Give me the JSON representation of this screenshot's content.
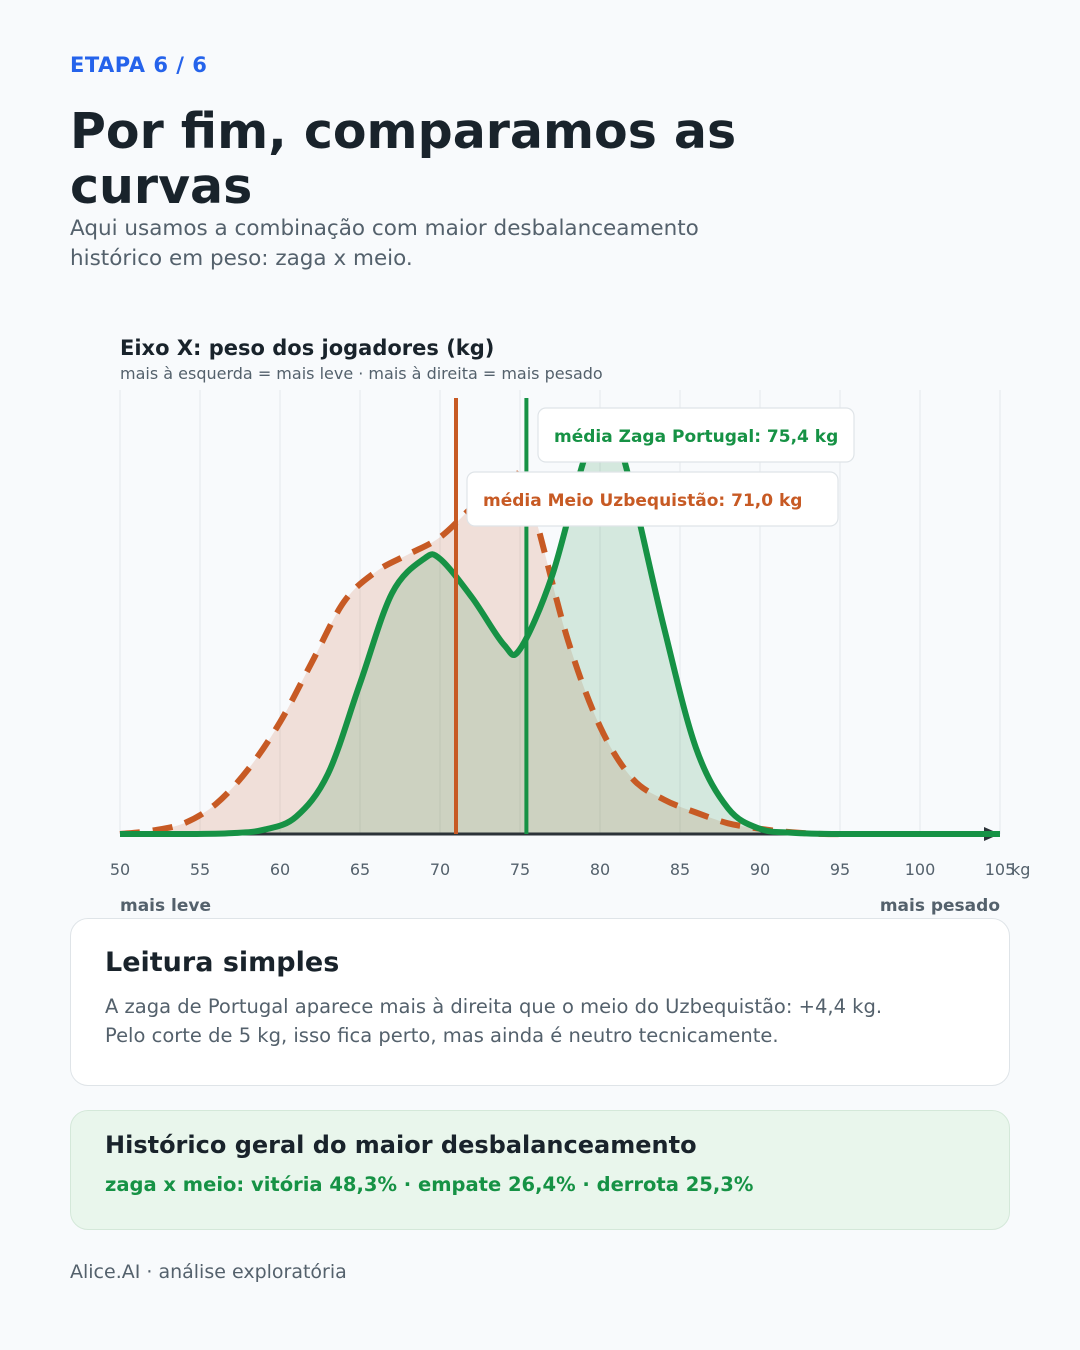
{
  "header": {
    "step": "ETAPA 6 / 6",
    "title": "Por fim, comparamos as curvas",
    "subtitle": "Aqui usamos a combinação com maior desbalanceamento histórico em peso: zaga x meio."
  },
  "chart_data": {
    "type": "area",
    "title": "Eixo X: peso dos jogadores (kg)",
    "subtitle": "mais à esquerda = mais leve · mais à direita = mais pesado",
    "xlabel": "kg",
    "x_left_label": "mais leve",
    "x_right_label": "mais pesado",
    "xlim": [
      50,
      105
    ],
    "ylim": [
      0,
      1
    ],
    "x_ticks": [
      50,
      55,
      60,
      65,
      70,
      75,
      80,
      85,
      90,
      95,
      100,
      105
    ],
    "x_tick_labels": [
      "50",
      "55",
      "60",
      "65",
      "70",
      "75",
      "80",
      "85",
      "90",
      "95",
      "100",
      "105"
    ],
    "grid": true,
    "y_axis_visible": false,
    "series": [
      {
        "name": "Meio Uzbequistão",
        "color": "#c75a24",
        "style": "dashed",
        "x": [
          50,
          52,
          54,
          56,
          58,
          60,
          62,
          64,
          66,
          68,
          70,
          72,
          74,
          75,
          76,
          78,
          80,
          82,
          84,
          86,
          88,
          90,
          92,
          94,
          96,
          100,
          105
        ],
        "y": [
          0.0,
          0.008,
          0.025,
          0.07,
          0.15,
          0.26,
          0.4,
          0.54,
          0.61,
          0.65,
          0.69,
          0.76,
          0.83,
          0.83,
          0.73,
          0.45,
          0.25,
          0.13,
          0.08,
          0.05,
          0.025,
          0.012,
          0.004,
          0.0,
          0.0,
          0.0,
          0.0
        ],
        "mean": 71.0,
        "mean_label": "média Meio Uzbequistão: 71,0 kg"
      },
      {
        "name": "Zaga Portugal",
        "color": "#169245",
        "style": "solid",
        "x": [
          50,
          54,
          57,
          59,
          61,
          63,
          65,
          67,
          69,
          70,
          72,
          74,
          75,
          77,
          79,
          80,
          81,
          82,
          84,
          86,
          88,
          90,
          92,
          95,
          100,
          105
        ],
        "y": [
          0.0,
          0.0,
          0.002,
          0.01,
          0.04,
          0.14,
          0.35,
          0.56,
          0.64,
          0.64,
          0.55,
          0.44,
          0.43,
          0.6,
          0.87,
          0.93,
          0.92,
          0.8,
          0.48,
          0.2,
          0.06,
          0.012,
          0.003,
          0.0,
          0.0,
          0.0
        ],
        "mean": 75.4,
        "mean_label": "média Zaga Portugal: 75,4 kg"
      }
    ]
  },
  "reading_card": {
    "title": "Leitura simples",
    "text": "A zaga de Portugal aparece mais à direita que o meio do Uzbequistão: +4,4 kg. Pelo corte de 5 kg, isso fica perto, mas ainda é neutro tecnicamente."
  },
  "history_card": {
    "title": "Histórico geral do maior desbalanceamento",
    "stats": "zaga x meio: vitória 48,3% · empate 26,4% · derrota 25,3%"
  },
  "footer": {
    "text": "Alice.AI · análise exploratória"
  },
  "colors": {
    "accent": "#2563eb",
    "orange": "#c75a24",
    "green": "#169245"
  }
}
